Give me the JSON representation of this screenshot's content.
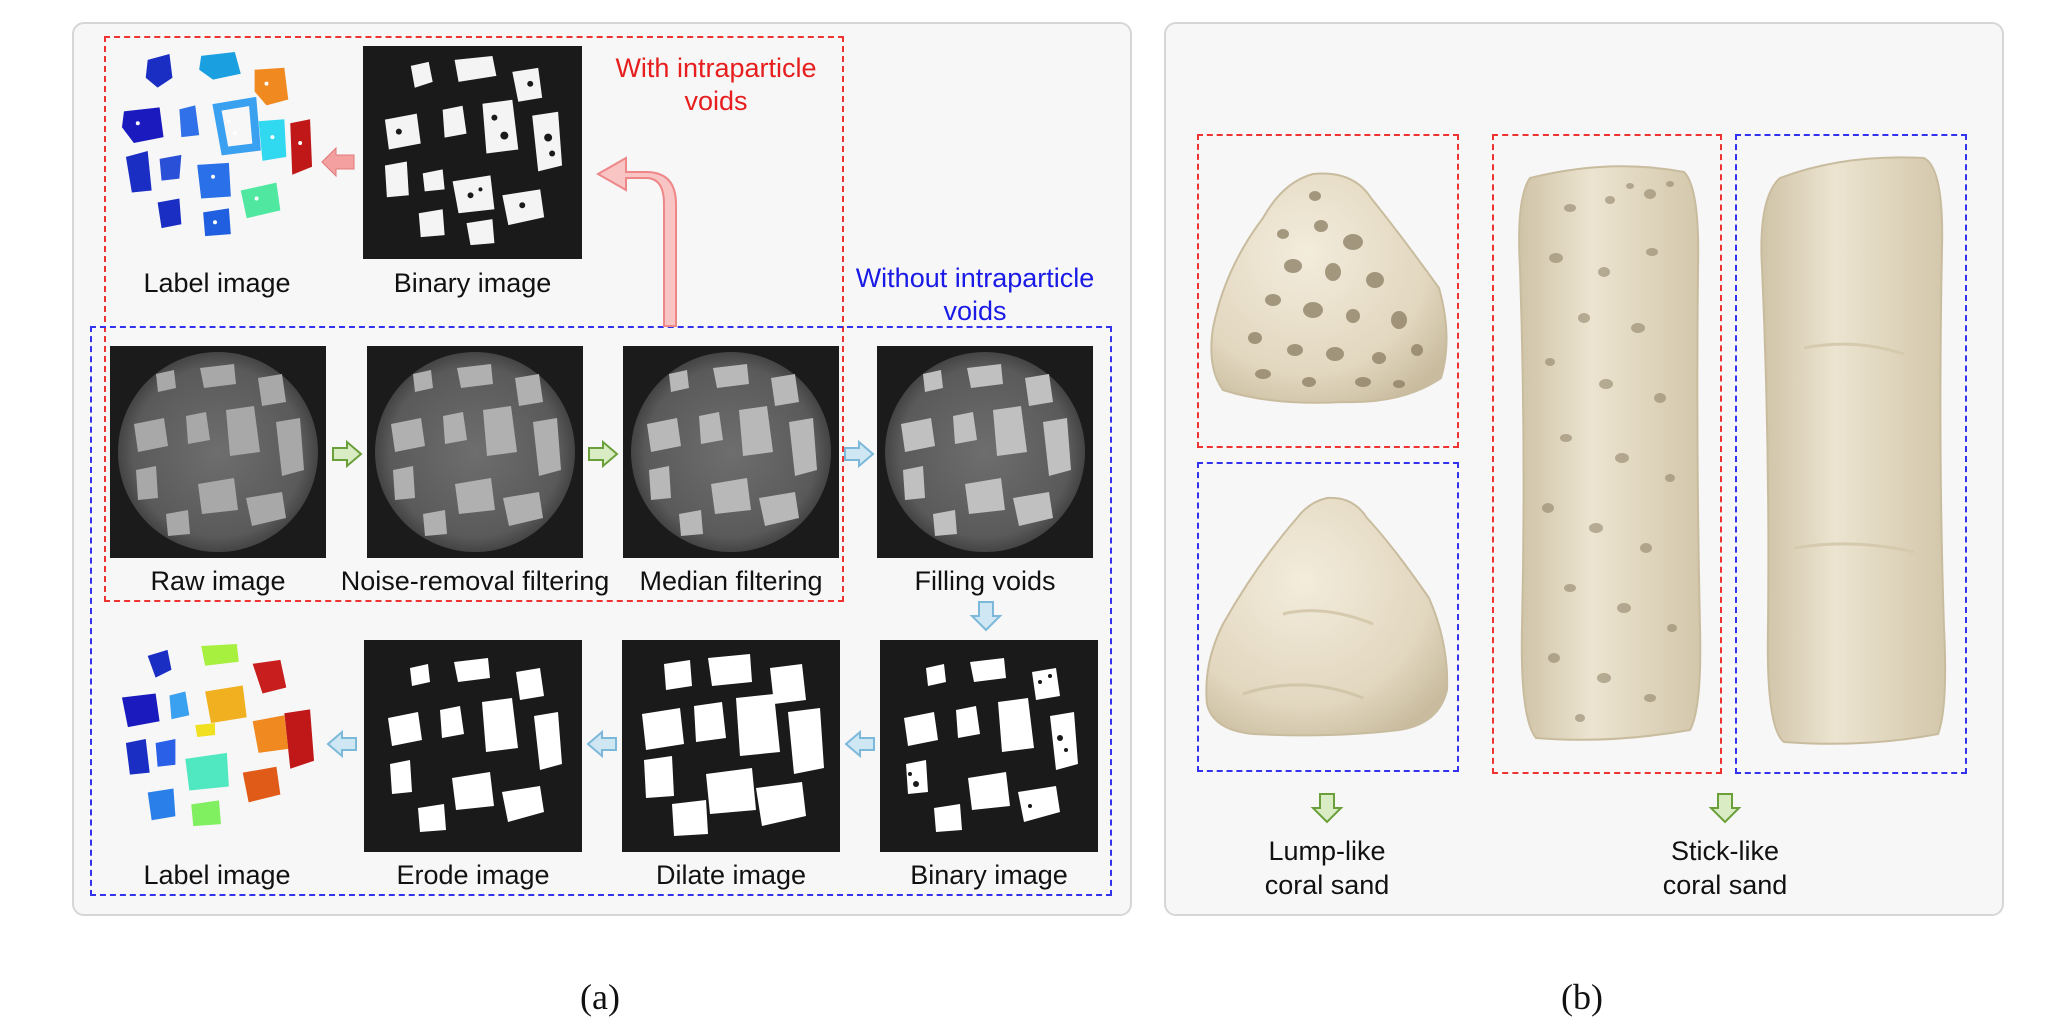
{
  "panel_a": {
    "caption": "(a)",
    "with_voids_note": [
      "With intraparticle",
      "voids"
    ],
    "without_voids_note": [
      "Without intraparticle",
      "voids"
    ],
    "labels": {
      "label_top": "Label image",
      "binary_top": "Binary image",
      "raw": "Raw image",
      "noise": "Noise-removal filtering",
      "median": "Median filtering",
      "filling": "Filling voids",
      "label_bottom": "Label image",
      "erode": "Erode image",
      "dilate": "Dilate image",
      "binary_bottom": "Binary image"
    }
  },
  "panel_b": {
    "caption": "(b)",
    "lump_label": [
      "Lump-like",
      "coral sand"
    ],
    "stick_label": [
      "Stick-like",
      "coral sand"
    ]
  },
  "colors": {
    "with_voids": "#ee3333",
    "without_voids": "#3333ee",
    "green_arrow": "#6a9f3a",
    "blue_arrow": "#7bb8d9",
    "pink_arrow": "#f4a0a0",
    "sand": "#e6ddc8"
  }
}
